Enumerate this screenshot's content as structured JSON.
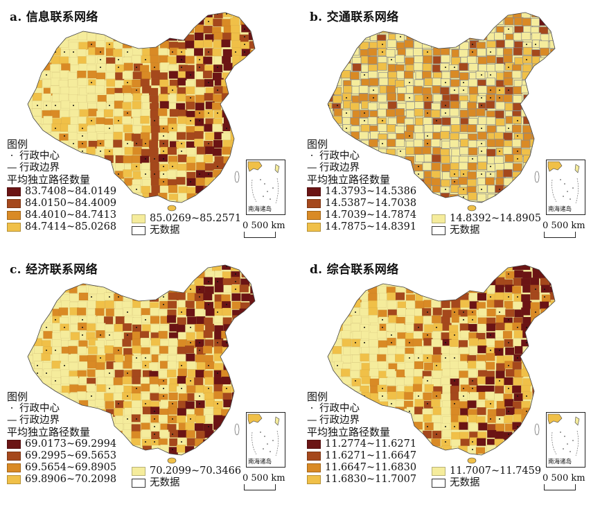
{
  "panels": [
    {
      "title": "a. 信息联系网络",
      "legend_title": "图例",
      "center_label": "行政中心",
      "boundary_label": "行政边界",
      "metric_label": "平均独立路径数量",
      "classes": [
        {
          "range": "83.7408~84.0149",
          "color": "#6b1414"
        },
        {
          "range": "84.0150~84.4009",
          "color": "#a5481c"
        },
        {
          "range": "84.4010~84.7413",
          "color": "#d98a25"
        },
        {
          "range": "84.7414~85.0268",
          "color": "#f0c048"
        },
        {
          "range": "85.0269~85.2571",
          "color": "#f5ec9c"
        }
      ],
      "nodata_label": "无数据",
      "scale_label": "0  500 km",
      "inset_label": "南海诸岛"
    },
    {
      "title": "b. 交通联系网络",
      "legend_title": "图例",
      "center_label": "行政中心",
      "boundary_label": "行政边界",
      "metric_label": "平均独立路径数量",
      "classes": [
        {
          "range": "14.3793~14.5386",
          "color": "#6b1414"
        },
        {
          "range": "14.5387~14.7038",
          "color": "#a5481c"
        },
        {
          "range": "14.7039~14.7874",
          "color": "#d98a25"
        },
        {
          "range": "14.7875~14.8391",
          "color": "#f0c048"
        },
        {
          "range": "14.8392~14.8905",
          "color": "#f5ec9c"
        }
      ],
      "nodata_label": "无数据",
      "scale_label": "0  500 km",
      "inset_label": "南海诸岛"
    },
    {
      "title": "c. 经济联系网络",
      "legend_title": "图例",
      "center_label": "行政中心",
      "boundary_label": "行政边界",
      "metric_label": "平均独立路径数量",
      "classes": [
        {
          "range": "69.0173~69.2994",
          "color": "#6b1414"
        },
        {
          "range": "69.2995~69.5653",
          "color": "#a5481c"
        },
        {
          "range": "69.5654~69.8905",
          "color": "#d98a25"
        },
        {
          "range": "69.8906~70.2098",
          "color": "#f0c048"
        },
        {
          "range": "70.2099~70.3466",
          "color": "#f5ec9c"
        }
      ],
      "nodata_label": "无数据",
      "scale_label": "0  500 km",
      "inset_label": "南海诸岛"
    },
    {
      "title": "d. 综合联系网络",
      "legend_title": "图例",
      "center_label": "行政中心",
      "boundary_label": "行政边界",
      "metric_label": "平均独立路径数量",
      "classes": [
        {
          "range": "11.2774~11.6271",
          "color": "#6b1414"
        },
        {
          "range": "11.6271~11.6647",
          "color": "#a5481c"
        },
        {
          "range": "11.6647~11.6830",
          "color": "#d98a25"
        },
        {
          "range": "11.6830~11.7007",
          "color": "#f0c048"
        },
        {
          "range": "11.7007~11.7459",
          "color": "#f5ec9c"
        }
      ],
      "nodata_label": "无数据",
      "scale_label": "0  500 km",
      "inset_label": "南海诸岛"
    }
  ]
}
